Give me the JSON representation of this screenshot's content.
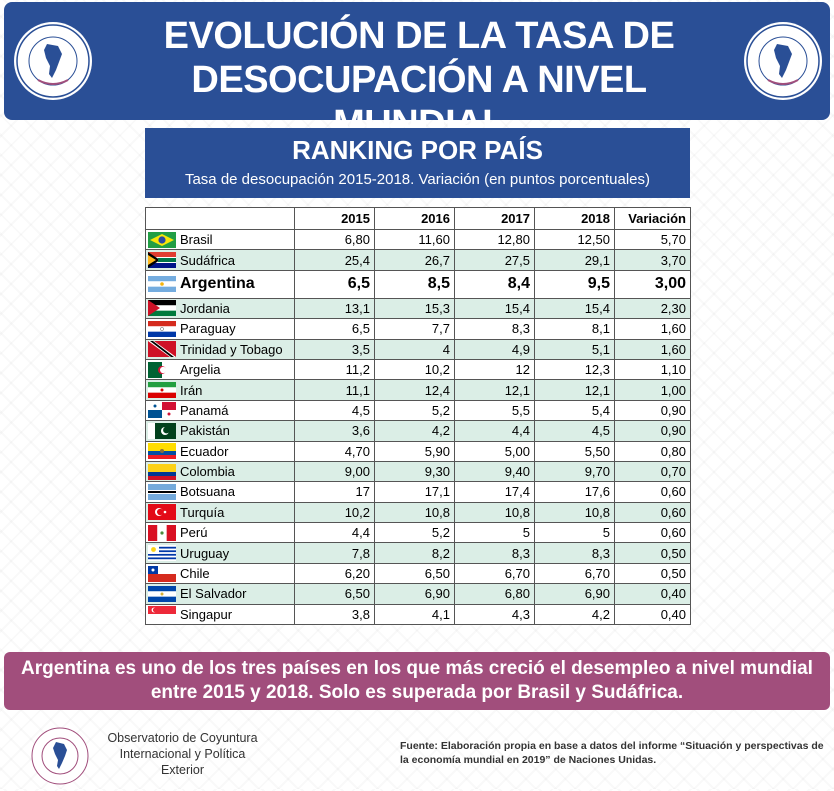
{
  "header": {
    "title_line1": "EVOLUCIÓN DE LA TASA DE",
    "title_line2": "DESOCUPACIÓN A NIVEL MUNDIAL",
    "logo_text": "Observatorio de Coyuntura Internacional y Política Exterior"
  },
  "chart_data": {
    "type": "table",
    "title": "RANKING POR PAÍS",
    "subtitle": "Tasa de desocupación 2015-2018. Variación (en puntos porcentuales)",
    "columns": [
      "",
      "2015",
      "2016",
      "2017",
      "2018",
      "Variación"
    ],
    "rows": [
      {
        "country": "Brasil",
        "flag": "brasil",
        "values": [
          "6,80",
          "11,60",
          "12,80",
          "12,50",
          "5,70"
        ]
      },
      {
        "country": "Sudáfrica",
        "flag": "sudafrica",
        "values": [
          "25,4",
          "26,7",
          "27,5",
          "29,1",
          "3,70"
        ]
      },
      {
        "country": "Argentina",
        "flag": "argentina",
        "values": [
          "6,5",
          "8,5",
          "8,4",
          "9,5",
          "3,00"
        ],
        "highlight": true
      },
      {
        "country": "Jordania",
        "flag": "jordania",
        "values": [
          "13,1",
          "15,3",
          "15,4",
          "15,4",
          "2,30"
        ]
      },
      {
        "country": "Paraguay",
        "flag": "paraguay",
        "values": [
          "6,5",
          "7,7",
          "8,3",
          "8,1",
          "1,60"
        ]
      },
      {
        "country": "Trinidad y Tobago",
        "flag": "trinidad",
        "values": [
          "3,5",
          "4",
          "4,9",
          "5,1",
          "1,60"
        ]
      },
      {
        "country": "Argelia",
        "flag": "argelia",
        "values": [
          "11,2",
          "10,2",
          "12",
          "12,3",
          "1,10"
        ]
      },
      {
        "country": "Irán",
        "flag": "iran",
        "values": [
          "11,1",
          "12,4",
          "12,1",
          "12,1",
          "1,00"
        ]
      },
      {
        "country": "Panamá",
        "flag": "panama",
        "values": [
          "4,5",
          "5,2",
          "5,5",
          "5,4",
          "0,90"
        ]
      },
      {
        "country": "Pakistán",
        "flag": "pakistan",
        "values": [
          "3,6",
          "4,2",
          "4,4",
          "4,5",
          "0,90"
        ]
      },
      {
        "country": "Ecuador",
        "flag": "ecuador",
        "values": [
          "4,70",
          "5,90",
          "5,00",
          "5,50",
          "0,80"
        ]
      },
      {
        "country": "Colombia",
        "flag": "colombia",
        "values": [
          "9,00",
          "9,30",
          "9,40",
          "9,70",
          "0,70"
        ]
      },
      {
        "country": "Botsuana",
        "flag": "botsuana",
        "values": [
          "17",
          "17,1",
          "17,4",
          "17,6",
          "0,60"
        ]
      },
      {
        "country": "Turquía",
        "flag": "turquia",
        "values": [
          "10,2",
          "10,8",
          "10,8",
          "10,8",
          "0,60"
        ]
      },
      {
        "country": "Perú",
        "flag": "peru",
        "values": [
          "4,4",
          "5,2",
          "5",
          "5",
          "0,60"
        ]
      },
      {
        "country": "Uruguay",
        "flag": "uruguay",
        "values": [
          "7,8",
          "8,2",
          "8,3",
          "8,3",
          "0,50"
        ]
      },
      {
        "country": "Chile",
        "flag": "chile",
        "values": [
          "6,20",
          "6,50",
          "6,70",
          "6,70",
          "0,50"
        ]
      },
      {
        "country": "El Salvador",
        "flag": "elsalvador",
        "values": [
          "6,50",
          "6,90",
          "6,80",
          "6,90",
          "0,40"
        ]
      },
      {
        "country": "Singapur",
        "flag": "singapur",
        "values": [
          "3,8",
          "4,1",
          "4,3",
          "4,2",
          "0,40"
        ]
      }
    ]
  },
  "note": {
    "line1": "Argentina es uno de los tres países en los que más creció el desempleo a nivel mundial",
    "line2": "entre 2015 y 2018. Solo es superada por Brasil y Sudáfrica."
  },
  "footer": {
    "org_line1": "Observatorio de Coyuntura",
    "org_line2": "Internacional y Política",
    "org_line3": "Exterior",
    "source": "Fuente: Elaboración propia en base a datos del informe “Situación y perspectivas de la economía mundial en 2019” de Naciones Unidas."
  },
  "colors": {
    "header_bg": "#2a4f96",
    "row_alt": "#dbeee6",
    "note_bg": "#a14e7c"
  }
}
